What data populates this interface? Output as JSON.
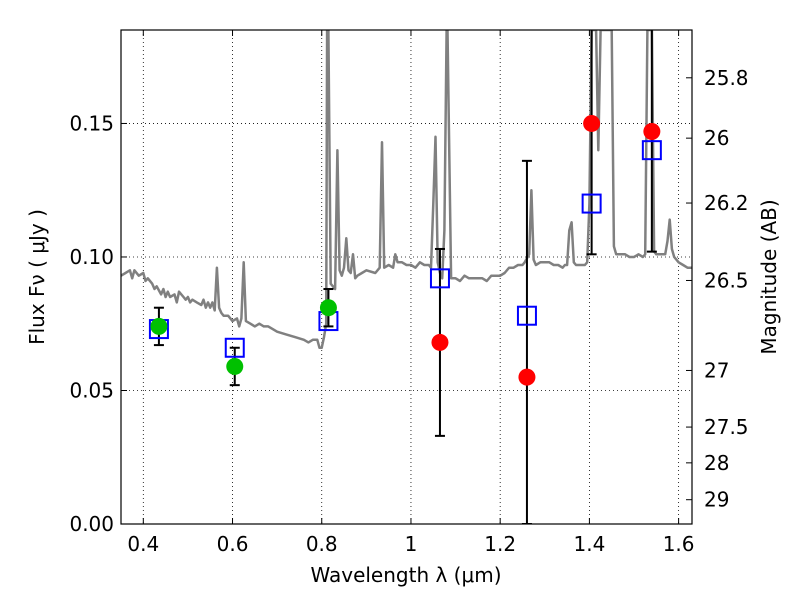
{
  "chart_data": {
    "type": "scatter",
    "title": "",
    "xlabel": "Wavelength  λ (μm)",
    "ylabel_left": "Flux  Fν  ( μJy )",
    "ylabel_right": "Magnitude (AB)",
    "xlim": [
      0.35,
      1.63
    ],
    "ylim": [
      0.0,
      0.185
    ],
    "grid": true,
    "x_ticks": [
      0.4,
      0.6,
      0.8,
      1.0,
      1.2,
      1.4,
      1.6
    ],
    "x_tick_labels": [
      "0.4",
      "0.6",
      "0.8",
      "1",
      "1.2",
      "1.4",
      "1.6"
    ],
    "y_ticks": [
      0.0,
      0.05,
      0.1,
      0.15
    ],
    "y_tick_labels": [
      "0.00",
      "0.05",
      "0.10",
      "0.15"
    ],
    "right_axis_ticks": [
      {
        "label": "25.8",
        "flux": 0.1671
      },
      {
        "label": "26",
        "flux": 0.1445
      },
      {
        "label": "26.2",
        "flux": 0.1202
      },
      {
        "label": "26.5",
        "flux": 0.0912
      },
      {
        "label": "27",
        "flux": 0.0575
      },
      {
        "label": "27.5",
        "flux": 0.0363
      },
      {
        "label": "28",
        "flux": 0.0229
      },
      {
        "label": "29",
        "flux": 0.0091
      }
    ],
    "series": [
      {
        "name": "model-spectrum",
        "style": "line",
        "color": "#808080",
        "points": [
          [
            0.35,
            0.093
          ],
          [
            0.36,
            0.094
          ],
          [
            0.37,
            0.095
          ],
          [
            0.375,
            0.092
          ],
          [
            0.38,
            0.095
          ],
          [
            0.39,
            0.093
          ],
          [
            0.4,
            0.094
          ],
          [
            0.405,
            0.091
          ],
          [
            0.41,
            0.092
          ],
          [
            0.42,
            0.09
          ],
          [
            0.425,
            0.088
          ],
          [
            0.43,
            0.089
          ],
          [
            0.44,
            0.086
          ],
          [
            0.445,
            0.088
          ],
          [
            0.45,
            0.085
          ],
          [
            0.455,
            0.087
          ],
          [
            0.46,
            0.085
          ],
          [
            0.47,
            0.086
          ],
          [
            0.475,
            0.083
          ],
          [
            0.48,
            0.087
          ],
          [
            0.49,
            0.085
          ],
          [
            0.495,
            0.084
          ],
          [
            0.5,
            0.085
          ],
          [
            0.505,
            0.083
          ],
          [
            0.51,
            0.084
          ],
          [
            0.52,
            0.083
          ],
          [
            0.53,
            0.082
          ],
          [
            0.535,
            0.084
          ],
          [
            0.54,
            0.081
          ],
          [
            0.545,
            0.083
          ],
          [
            0.55,
            0.081
          ],
          [
            0.555,
            0.083
          ],
          [
            0.56,
            0.08
          ],
          [
            0.565,
            0.096
          ],
          [
            0.57,
            0.081
          ],
          [
            0.575,
            0.079
          ],
          [
            0.58,
            0.078
          ],
          [
            0.59,
            0.078
          ],
          [
            0.6,
            0.076
          ],
          [
            0.61,
            0.077
          ],
          [
            0.615,
            0.074
          ],
          [
            0.62,
            0.077
          ],
          [
            0.625,
            0.098
          ],
          [
            0.63,
            0.076
          ],
          [
            0.64,
            0.075
          ],
          [
            0.65,
            0.074
          ],
          [
            0.66,
            0.075
          ],
          [
            0.67,
            0.074
          ],
          [
            0.68,
            0.074
          ],
          [
            0.69,
            0.073
          ],
          [
            0.7,
            0.072
          ],
          [
            0.72,
            0.071
          ],
          [
            0.74,
            0.07
          ],
          [
            0.76,
            0.069
          ],
          [
            0.77,
            0.068
          ],
          [
            0.78,
            0.069
          ],
          [
            0.79,
            0.069
          ],
          [
            0.795,
            0.066
          ],
          [
            0.8,
            0.066
          ],
          [
            0.805,
            0.07
          ],
          [
            0.81,
            0.075
          ],
          [
            0.812,
            0.185
          ],
          [
            0.815,
            0.185
          ],
          [
            0.82,
            0.09
          ],
          [
            0.83,
            0.088
          ],
          [
            0.835,
            0.14
          ],
          [
            0.84,
            0.095
          ],
          [
            0.845,
            0.093
          ],
          [
            0.85,
            0.096
          ],
          [
            0.855,
            0.107
          ],
          [
            0.86,
            0.095
          ],
          [
            0.865,
            0.094
          ],
          [
            0.87,
            0.101
          ],
          [
            0.875,
            0.092
          ],
          [
            0.88,
            0.093
          ],
          [
            0.89,
            0.094
          ],
          [
            0.9,
            0.095
          ],
          [
            0.92,
            0.094
          ],
          [
            0.93,
            0.096
          ],
          [
            0.935,
            0.143
          ],
          [
            0.94,
            0.096
          ],
          [
            0.95,
            0.097
          ],
          [
            0.96,
            0.096
          ],
          [
            0.965,
            0.101
          ],
          [
            0.97,
            0.098
          ],
          [
            0.98,
            0.098
          ],
          [
            0.99,
            0.097
          ],
          [
            1.0,
            0.097
          ],
          [
            1.01,
            0.096
          ],
          [
            1.02,
            0.098
          ],
          [
            1.03,
            0.097
          ],
          [
            1.04,
            0.097
          ],
          [
            1.045,
            0.096
          ],
          [
            1.05,
            0.12
          ],
          [
            1.055,
            0.145
          ],
          [
            1.06,
            0.098
          ],
          [
            1.065,
            0.094
          ],
          [
            1.07,
            0.092
          ],
          [
            1.075,
            0.11
          ],
          [
            1.08,
            0.185
          ],
          [
            1.082,
            0.185
          ],
          [
            1.09,
            0.092
          ],
          [
            1.1,
            0.092
          ],
          [
            1.11,
            0.091
          ],
          [
            1.12,
            0.093
          ],
          [
            1.13,
            0.092
          ],
          [
            1.14,
            0.092
          ],
          [
            1.15,
            0.092
          ],
          [
            1.16,
            0.092
          ],
          [
            1.17,
            0.091
          ],
          [
            1.18,
            0.093
          ],
          [
            1.19,
            0.093
          ],
          [
            1.2,
            0.093
          ],
          [
            1.21,
            0.094
          ],
          [
            1.22,
            0.096
          ],
          [
            1.23,
            0.096
          ],
          [
            1.24,
            0.097
          ],
          [
            1.25,
            0.097
          ],
          [
            1.255,
            0.098
          ],
          [
            1.265,
            0.101
          ],
          [
            1.27,
            0.125
          ],
          [
            1.275,
            0.099
          ],
          [
            1.28,
            0.097
          ],
          [
            1.29,
            0.098
          ],
          [
            1.3,
            0.098
          ],
          [
            1.31,
            0.098
          ],
          [
            1.32,
            0.097
          ],
          [
            1.33,
            0.097
          ],
          [
            1.34,
            0.096
          ],
          [
            1.345,
            0.097
          ],
          [
            1.35,
            0.097
          ],
          [
            1.355,
            0.11
          ],
          [
            1.36,
            0.113
          ],
          [
            1.365,
            0.098
          ],
          [
            1.37,
            0.097
          ],
          [
            1.38,
            0.097
          ],
          [
            1.39,
            0.097
          ],
          [
            1.395,
            0.098
          ],
          [
            1.4,
            0.12
          ],
          [
            1.405,
            0.185
          ],
          [
            1.41,
            0.185
          ],
          [
            1.415,
            0.185
          ],
          [
            1.42,
            0.14
          ],
          [
            1.425,
            0.185
          ],
          [
            1.43,
            0.185
          ],
          [
            1.44,
            0.185
          ],
          [
            1.45,
            0.185
          ],
          [
            1.455,
            0.104
          ],
          [
            1.46,
            0.101
          ],
          [
            1.47,
            0.101
          ],
          [
            1.48,
            0.101
          ],
          [
            1.49,
            0.1
          ],
          [
            1.5,
            0.1
          ],
          [
            1.51,
            0.101
          ],
          [
            1.52,
            0.1
          ],
          [
            1.525,
            0.101
          ],
          [
            1.53,
            0.185
          ],
          [
            1.535,
            0.185
          ],
          [
            1.54,
            0.185
          ],
          [
            1.545,
            0.102
          ],
          [
            1.55,
            0.101
          ],
          [
            1.56,
            0.101
          ],
          [
            1.57,
            0.101
          ],
          [
            1.575,
            0.106
          ],
          [
            1.58,
            0.114
          ],
          [
            1.585,
            0.103
          ],
          [
            1.59,
            0.1
          ],
          [
            1.6,
            0.098
          ],
          [
            1.61,
            0.097
          ],
          [
            1.62,
            0.096
          ],
          [
            1.63,
            0.096
          ]
        ]
      },
      {
        "name": "model-photometry",
        "style": "open-square",
        "color": "#0000ff",
        "x": [
          0.435,
          0.605,
          0.815,
          1.065,
          1.26,
          1.405,
          1.54
        ],
        "y": [
          0.073,
          0.066,
          0.076,
          0.092,
          0.078,
          0.12,
          0.14
        ]
      },
      {
        "name": "detections",
        "style": "filled-circle",
        "color": "#00c000",
        "x": [
          0.435,
          0.605,
          0.815
        ],
        "y": [
          0.074,
          0.059,
          0.081
        ],
        "yerr": [
          0.007,
          0.007,
          0.007
        ]
      },
      {
        "name": "non-detections",
        "style": "filled-circle",
        "color": "#ff0000",
        "x": [
          1.065,
          1.26,
          1.405,
          1.54
        ],
        "y": [
          0.068,
          0.055,
          0.15,
          0.147
        ],
        "yerr_low": [
          0.035,
          0.055,
          0.049,
          0.045
        ],
        "yerr_high": [
          0.035,
          0.081,
          0.049,
          0.045
        ]
      }
    ]
  }
}
